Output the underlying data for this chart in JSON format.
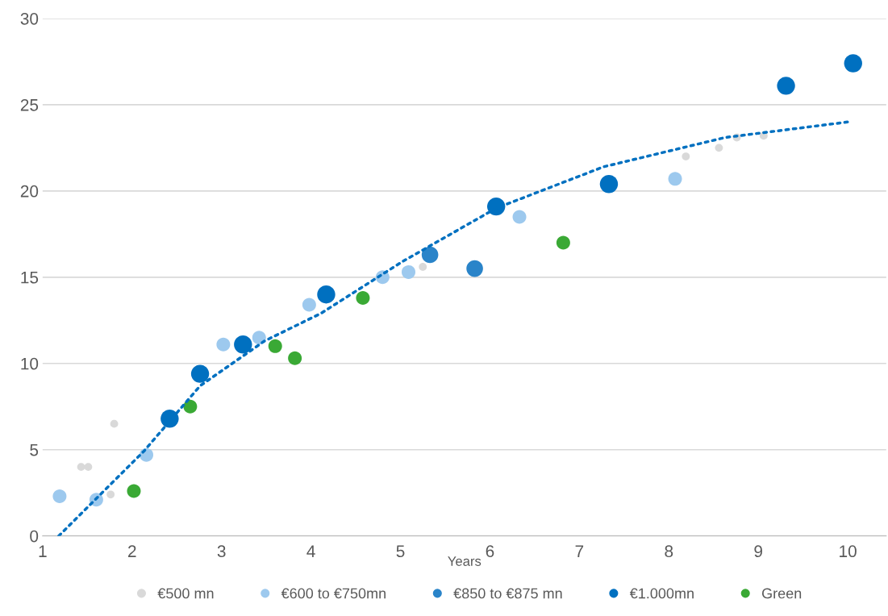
{
  "chart_data": {
    "type": "scatter",
    "xlabel": "Years",
    "xlim": [
      1,
      10.43
    ],
    "ylim": [
      0,
      30
    ],
    "xticks": [
      1,
      2,
      3,
      4,
      5,
      6,
      7,
      8,
      9,
      10
    ],
    "yticks": [
      0,
      5,
      10,
      15,
      20,
      25,
      30
    ],
    "grid": "y",
    "legend": "bottom",
    "marker": "circle",
    "series": [
      {
        "name": "€500 mn",
        "color": "#d9d9d9",
        "x": [
          1.43,
          1.51,
          1.76,
          1.8,
          5.25,
          8.19,
          8.56,
          8.76,
          9.06
        ],
        "values": [
          4.0,
          4.0,
          2.4,
          6.5,
          15.6,
          22.0,
          22.5,
          23.1,
          23.2
        ]
      },
      {
        "name": "€600 to €750mn",
        "color": "#9dc9ee",
        "x": [
          1.19,
          1.6,
          2.16,
          3.02,
          3.42,
          3.98,
          4.8,
          5.09,
          6.33,
          8.07
        ],
        "values": [
          2.3,
          2.1,
          4.7,
          11.1,
          11.5,
          13.4,
          15.0,
          15.3,
          18.5,
          20.7
        ]
      },
      {
        "name": "€850 to €875 mn",
        "color": "#2a84c9",
        "x": [
          5.33,
          5.83
        ],
        "values": [
          16.3,
          15.5
        ]
      },
      {
        "name": "€1.000mn",
        "color": "#0070c0",
        "x": [
          2.42,
          2.76,
          3.24,
          4.17,
          6.07,
          7.33,
          9.31,
          10.06
        ],
        "values": [
          6.8,
          9.4,
          11.1,
          14.0,
          19.1,
          20.4,
          26.1,
          27.4
        ]
      },
      {
        "name": "Green",
        "color": "#3aa935",
        "x": [
          2.02,
          2.65,
          3.6,
          3.82,
          4.58,
          6.82
        ],
        "values": [
          2.6,
          7.5,
          11.0,
          10.3,
          13.8,
          17.0
        ]
      },
      {
        "type": "line",
        "color": "#0070c0",
        "line_style": "dotted",
        "marker": "none",
        "x": [
          1.18,
          2.13,
          2.76,
          3.48,
          4.11,
          5.02,
          6.07,
          7.27,
          8.63,
          10.0
        ],
        "values": [
          0,
          4.9,
          8.7,
          11.3,
          12.9,
          15.9,
          19.0,
          21.4,
          23.1,
          24.0
        ]
      }
    ]
  }
}
